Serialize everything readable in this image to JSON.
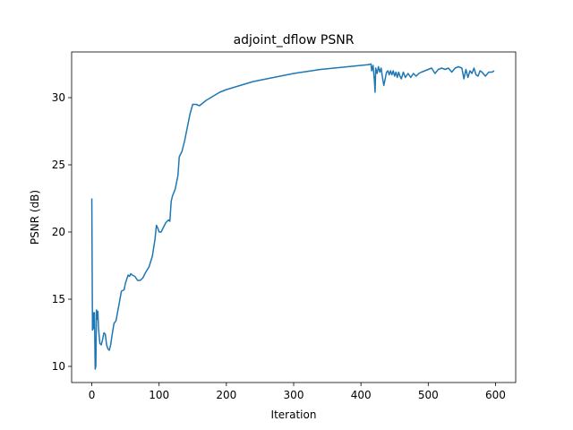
{
  "chart_data": {
    "type": "line",
    "title": "adjoint_dflow PSNR",
    "xlabel": "Iteration",
    "ylabel": "PSNR (dB)",
    "xlim": [
      -30,
      630
    ],
    "ylim": [
      8.8,
      33.4
    ],
    "xticks": [
      0,
      100,
      200,
      300,
      400,
      500,
      600
    ],
    "yticks": [
      10,
      15,
      20,
      25,
      30
    ],
    "grid": false,
    "color": "#1f77b4",
    "series": [
      {
        "x": [
          0,
          1,
          2,
          3,
          4,
          5,
          6,
          7,
          8,
          9,
          10,
          12,
          14,
          16,
          18,
          20,
          22,
          24,
          26,
          28,
          30,
          33,
          36,
          40,
          44,
          48,
          50,
          52,
          54,
          56,
          58,
          60,
          64,
          68,
          72,
          76,
          80,
          85,
          90,
          94,
          96,
          98,
          100,
          103,
          106,
          110,
          114,
          116,
          118,
          120,
          124,
          128,
          130,
          132,
          134,
          138,
          142,
          146,
          150,
          155,
          160,
          165,
          170,
          180,
          190,
          200,
          220,
          240,
          260,
          280,
          300,
          320,
          340,
          360,
          380,
          400,
          410,
          415,
          416,
          418,
          420,
          421,
          422,
          424,
          426,
          428,
          430,
          432,
          434,
          436,
          438,
          440,
          442,
          444,
          446,
          448,
          450,
          452,
          454,
          456,
          458,
          460,
          463,
          466,
          470,
          474,
          478,
          482,
          486,
          490,
          495,
          500,
          505,
          510,
          515,
          520,
          525,
          530,
          535,
          540,
          545,
          550,
          553,
          556,
          559,
          562,
          565,
          568,
          571,
          574,
          577,
          580,
          585,
          590,
          595,
          598
        ],
        "y": [
          22.5,
          12.7,
          14.0,
          12.8,
          14.0,
          9.8,
          10.0,
          14.2,
          13.5,
          14.1,
          12.8,
          11.7,
          11.6,
          12.0,
          12.5,
          12.4,
          11.6,
          11.3,
          11.2,
          11.6,
          12.3,
          13.2,
          13.4,
          14.5,
          15.6,
          15.7,
          16.2,
          16.5,
          16.8,
          16.7,
          16.9,
          16.8,
          16.7,
          16.4,
          16.4,
          16.6,
          17.0,
          17.4,
          18.2,
          19.5,
          20.5,
          20.3,
          20.0,
          20.0,
          20.3,
          20.7,
          20.9,
          20.8,
          22.3,
          22.7,
          23.2,
          24.2,
          25.6,
          25.8,
          26.0,
          26.8,
          27.8,
          28.8,
          29.5,
          29.5,
          29.4,
          29.6,
          29.8,
          30.1,
          30.4,
          30.6,
          30.9,
          31.2,
          31.4,
          31.6,
          31.8,
          31.95,
          32.1,
          32.2,
          32.3,
          32.4,
          32.45,
          32.5,
          32.0,
          32.4,
          31.3,
          30.4,
          32.2,
          31.8,
          32.3,
          31.9,
          32.2,
          31.5,
          30.9,
          31.4,
          31.9,
          32.0,
          31.7,
          32.0,
          31.7,
          32.0,
          31.6,
          31.9,
          31.5,
          31.9,
          31.6,
          31.4,
          31.9,
          31.5,
          31.8,
          31.5,
          31.8,
          31.6,
          31.8,
          31.9,
          32.0,
          32.1,
          32.2,
          31.8,
          32.1,
          32.2,
          32.1,
          32.2,
          31.9,
          32.2,
          32.3,
          32.2,
          31.4,
          32.1,
          31.5,
          32.0,
          31.8,
          32.2,
          31.7,
          31.6,
          32.0,
          31.9,
          31.6,
          31.9,
          31.9,
          32.0
        ]
      }
    ]
  }
}
